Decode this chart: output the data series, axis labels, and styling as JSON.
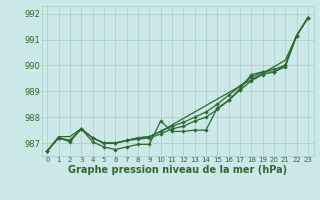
{
  "x": [
    0,
    1,
    2,
    3,
    4,
    5,
    6,
    7,
    8,
    9,
    10,
    11,
    12,
    13,
    14,
    15,
    16,
    17,
    18,
    19,
    20,
    21,
    22,
    23
  ],
  "line_main": [
    986.7,
    987.2,
    987.05,
    987.55,
    987.05,
    986.85,
    986.75,
    986.85,
    986.95,
    986.95,
    987.85,
    987.45,
    987.45,
    987.5,
    987.5,
    988.35,
    988.65,
    989.1,
    989.65,
    989.75,
    989.75,
    989.95,
    991.15,
    991.85
  ],
  "line_smooth1": [
    986.7,
    987.2,
    987.1,
    987.55,
    987.2,
    987.0,
    987.0,
    987.1,
    987.15,
    987.2,
    987.35,
    987.55,
    987.65,
    987.85,
    988.0,
    988.3,
    988.65,
    989.05,
    989.4,
    989.65,
    989.75,
    990.0,
    991.15,
    991.85
  ],
  "line_smooth2": [
    986.7,
    987.2,
    987.1,
    987.55,
    987.2,
    987.0,
    987.0,
    987.1,
    987.2,
    987.25,
    987.45,
    987.65,
    987.8,
    988.0,
    988.2,
    988.5,
    988.85,
    989.2,
    989.55,
    989.75,
    989.85,
    990.0,
    991.15,
    991.85
  ],
  "line_trend": [
    986.7,
    987.25,
    987.25,
    987.55,
    987.2,
    987.0,
    987.0,
    987.1,
    987.2,
    987.25,
    987.45,
    987.7,
    987.95,
    988.2,
    988.45,
    988.7,
    988.95,
    989.2,
    989.45,
    989.7,
    989.95,
    990.2,
    991.15,
    991.85
  ],
  "line_color": "#2d6a2d",
  "bg_color": "#cce8e8",
  "grid_color": "#aacccc",
  "xlabel": "Graphe pression niveau de la mer (hPa)",
  "ylim": [
    986.5,
    992.3
  ],
  "yticks": [
    987,
    988,
    989,
    990,
    991,
    992
  ],
  "xlim": [
    -0.5,
    23.5
  ],
  "xtick_labels": [
    "0",
    "1",
    "2",
    "3",
    "4",
    "5",
    "6",
    "7",
    "8",
    "9",
    "10",
    "11",
    "12",
    "13",
    "14",
    "15",
    "16",
    "17",
    "18",
    "19",
    "20",
    "21",
    "22",
    "23"
  ]
}
